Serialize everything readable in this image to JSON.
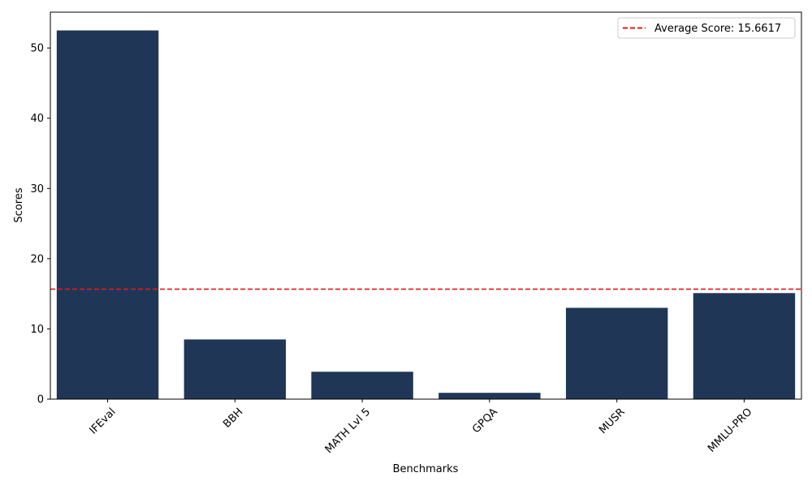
{
  "chart_data": {
    "type": "bar",
    "categories": [
      "IFEval",
      "BBH",
      "MATH Lvl 5",
      "GPQA",
      "MUSR",
      "MMLU-PRO"
    ],
    "values": [
      52.5,
      8.5,
      3.9,
      0.9,
      13.0,
      15.1
    ],
    "title": "",
    "xlabel": "Benchmarks",
    "ylabel": "Scores",
    "ylim": [
      0,
      55.1
    ],
    "yticks": [
      0,
      10,
      20,
      30,
      40,
      50
    ],
    "bar_color": "#1f3657",
    "reference_line": {
      "value": 15.6617,
      "label": "Average Score: 15.6617",
      "color": "#e31a1c",
      "style": "dashed"
    },
    "legend_position": "top-right",
    "grid": false,
    "xtick_rotation_deg": 45
  }
}
